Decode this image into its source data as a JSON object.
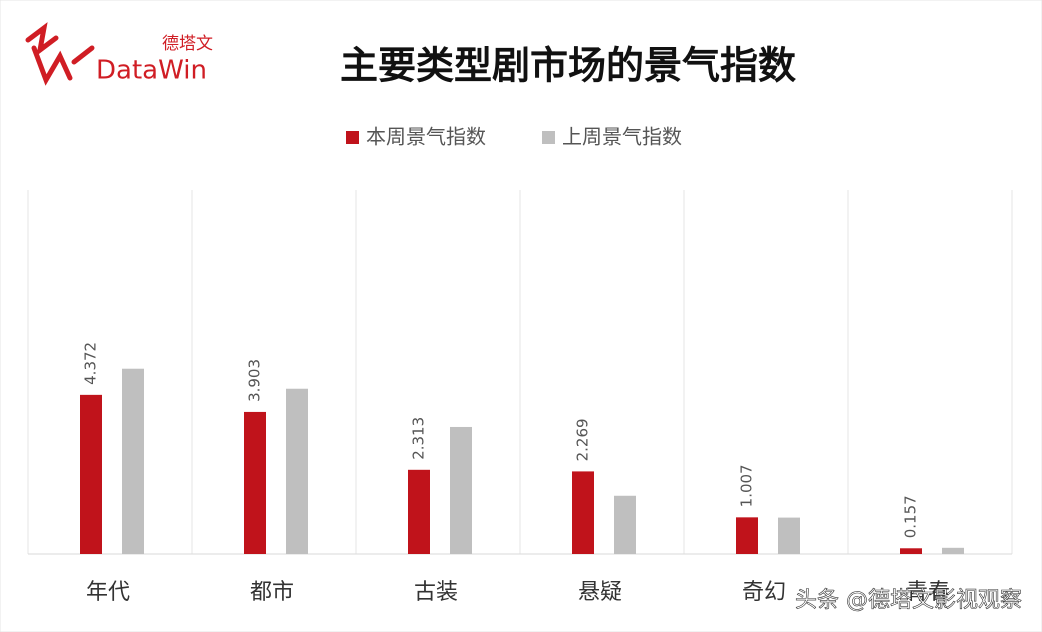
{
  "logo": {
    "brand": "DataWin",
    "brand_cn": "德塔文"
  },
  "watermark": "头条 @德塔文影视观察",
  "chart_data": {
    "type": "bar",
    "title": "主要类型剧市场的景气指数",
    "categories": [
      "年代",
      "都市",
      "古装",
      "悬疑",
      "奇幻",
      "青春"
    ],
    "series": [
      {
        "name": "本周景气指数",
        "color": "#c0131b",
        "values": [
          4.372,
          3.903,
          2.313,
          2.269,
          1.007,
          0.157
        ],
        "show_labels": true
      },
      {
        "name": "上周景气指数",
        "color": "#bfbfbf",
        "values": [
          5.09,
          4.54,
          3.49,
          1.6,
          1.0,
          0.17
        ],
        "show_labels": false
      }
    ],
    "ylim": [
      0,
      10
    ],
    "legend": "top"
  }
}
